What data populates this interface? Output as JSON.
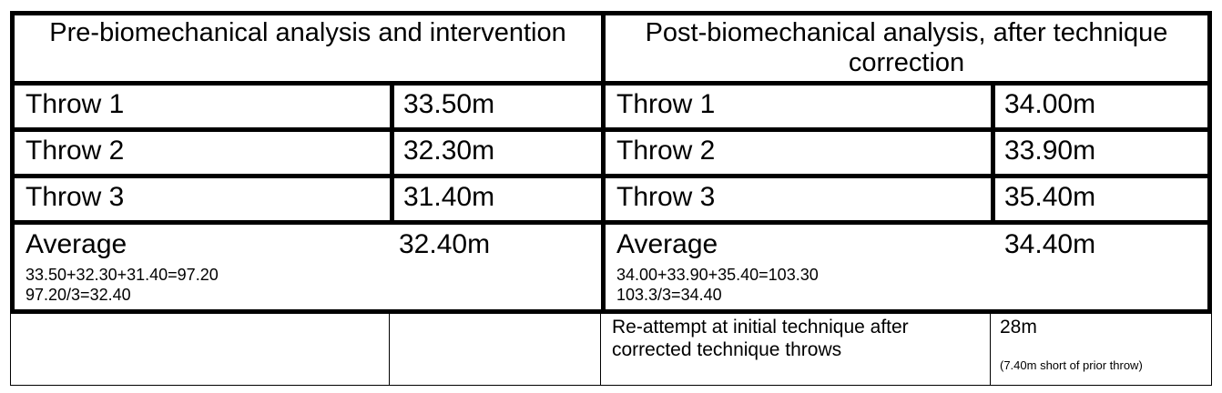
{
  "header": {
    "pre": "Pre-biomechanical analysis and intervention",
    "post": "Post-biomechanical analysis, after technique correction"
  },
  "pre": {
    "throws": [
      {
        "label": "Throw 1",
        "value": "33.50m"
      },
      {
        "label": "Throw 2",
        "value": "32.30m"
      },
      {
        "label": "Throw 3",
        "value": "31.40m"
      }
    ],
    "average_label": "Average",
    "average_value": "32.40m",
    "calc_line1": "33.50+32.30+31.40=97.20",
    "calc_line2": "97.20/3=32.40"
  },
  "post": {
    "throws": [
      {
        "label": "Throw 1",
        "value": "34.00m"
      },
      {
        "label": "Throw 2",
        "value": "33.90m"
      },
      {
        "label": "Throw 3",
        "value": "35.40m"
      }
    ],
    "average_label": "Average",
    "average_value": "34.40m",
    "calc_line1": "34.00+33.90+35.40=103.30",
    "calc_line2": "103.3/3=34.40"
  },
  "reattempt": {
    "label": "Re-attempt at initial technique after corrected technique throws",
    "value": "28m",
    "note": "(7.40m short of prior throw)"
  }
}
